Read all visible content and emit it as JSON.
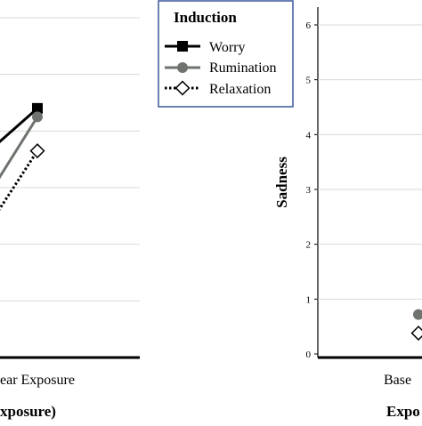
{
  "colors": {
    "worry": "#000000",
    "rumination": "#6e736e",
    "relaxation": "#000000",
    "gridline": "#d9d9d9",
    "legend_border": "#3b5998"
  },
  "legend": {
    "title": "Induction",
    "entries": [
      "Worry",
      "Rumination",
      "Relaxation"
    ],
    "markers": [
      "square-filled-icon",
      "circle-filled-icon",
      "diamond-open-icon"
    ]
  },
  "chart_data": [
    {
      "type": "line",
      "panel": "left",
      "y_range": [
        0,
        6
      ],
      "grid": true,
      "x_tick_label_visible": "ear Exposure",
      "xlabel_visible": "xposure)",
      "series": [
        {
          "name": "Worry",
          "marker": "square",
          "line": "solid",
          "values": [
            {
              "x": "Fear Exposure",
              "y": 4.4
            }
          ]
        },
        {
          "name": "Rumination",
          "marker": "circle",
          "line": "solid",
          "values": [
            {
              "x": "Fear Exposure",
              "y": 4.25
            }
          ]
        },
        {
          "name": "Relaxation",
          "marker": "diamond-open",
          "line": "dotted",
          "values": [
            {
              "x": "Fear Exposure",
              "y": 3.65
            }
          ]
        }
      ]
    },
    {
      "type": "scatter",
      "panel": "right",
      "ylabel": "Sadness",
      "y_ticks": [
        "0",
        "1",
        "2",
        "3",
        "4",
        "5",
        "6"
      ],
      "ylim": [
        0,
        6
      ],
      "grid": true,
      "x_tick_label_visible": "Base",
      "xlabel_visible": "Expo",
      "series": [
        {
          "name": "Rumination",
          "marker": "circle",
          "values": [
            {
              "x": "Baseline",
              "y": 0.72
            }
          ]
        },
        {
          "name": "Relaxation",
          "marker": "diamond-open",
          "values": [
            {
              "x": "Baseline",
              "y": 0.38
            }
          ]
        }
      ]
    }
  ]
}
